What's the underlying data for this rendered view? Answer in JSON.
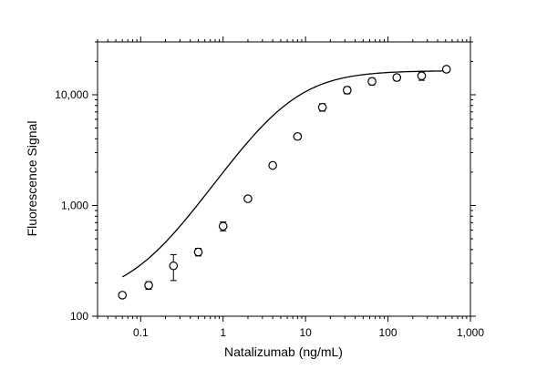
{
  "chart_data": {
    "type": "scatter",
    "title": "",
    "xlabel": "Natalizumab (ng/mL)",
    "ylabel": "Fluorescence Signal",
    "x_scale": "log",
    "y_scale": "log",
    "xlim": [
      0.03,
      1000
    ],
    "ylim": [
      100,
      30000
    ],
    "xticks": [
      {
        "value": 0.1,
        "label": "0.1"
      },
      {
        "value": 1,
        "label": "1"
      },
      {
        "value": 10,
        "label": "10"
      },
      {
        "value": 100,
        "label": "100"
      },
      {
        "value": 1000,
        "label": "1,000"
      }
    ],
    "yticks": [
      {
        "value": 100,
        "label": "100"
      },
      {
        "value": 1000,
        "label": "1,000"
      },
      {
        "value": 10000,
        "label": "10,000"
      }
    ],
    "grid": false,
    "series": [
      {
        "x": [
          0.06,
          0.125,
          0.25,
          0.5,
          1,
          2,
          4,
          8,
          16,
          32,
          64,
          128,
          256,
          512
        ],
        "y": [
          155,
          190,
          285,
          380,
          650,
          1150,
          2300,
          4200,
          7700,
          11000,
          13200,
          14300,
          14800,
          17000
        ],
        "y_error": [
          8,
          15,
          75,
          30,
          60,
          60,
          120,
          250,
          600,
          800,
          900,
          900,
          1300,
          1000
        ]
      }
    ],
    "fit": {
      "type": "4PL",
      "bottom": 145,
      "top": 16500,
      "ec50": 6,
      "hill": 1.15
    }
  }
}
